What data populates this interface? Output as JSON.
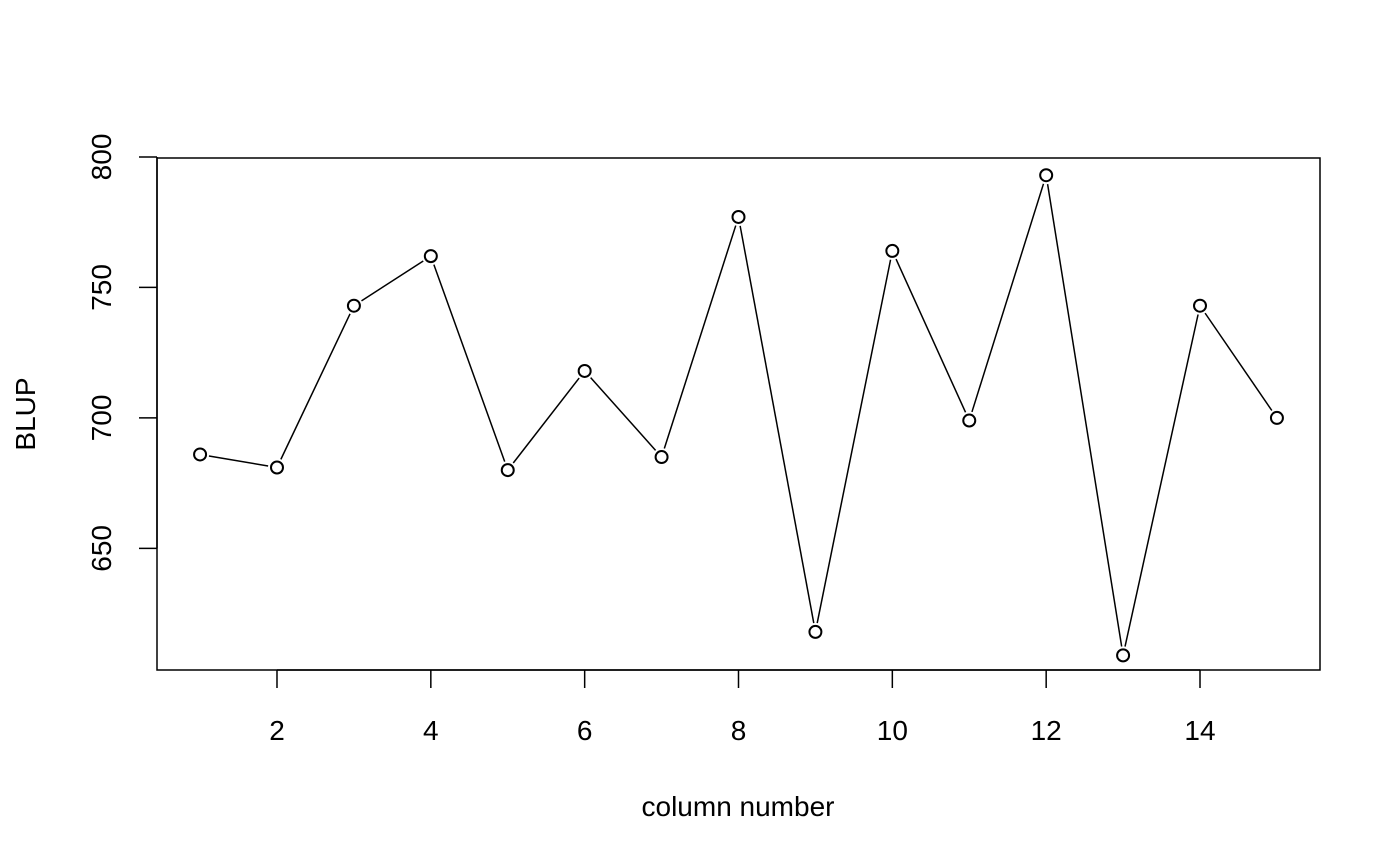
{
  "chart_data": {
    "type": "line",
    "title": "",
    "xlabel": "column number",
    "ylabel": "BLUP",
    "x": [
      1,
      2,
      3,
      4,
      5,
      6,
      7,
      8,
      9,
      10,
      11,
      12,
      13,
      14,
      15
    ],
    "y": [
      686,
      681,
      743,
      762,
      680,
      718,
      685,
      777,
      618,
      764,
      699,
      793,
      609,
      743,
      700
    ],
    "xlim": [
      0.44,
      15.56
    ],
    "ylim": [
      603.4,
      799.6
    ],
    "xticks": [
      2,
      4,
      6,
      8,
      10,
      12,
      14
    ],
    "xtick_labels": [
      "2",
      "4",
      "6",
      "8",
      "10",
      "12",
      "14"
    ],
    "yticks": [
      650,
      700,
      750,
      800
    ],
    "ytick_labels": [
      "650",
      "700",
      "750",
      "800"
    ],
    "grid": false,
    "legend": "none",
    "marker": "open-circle",
    "colors": {
      "line": "#000000",
      "point_fill": "#ffffff",
      "axis": "#000000"
    }
  }
}
